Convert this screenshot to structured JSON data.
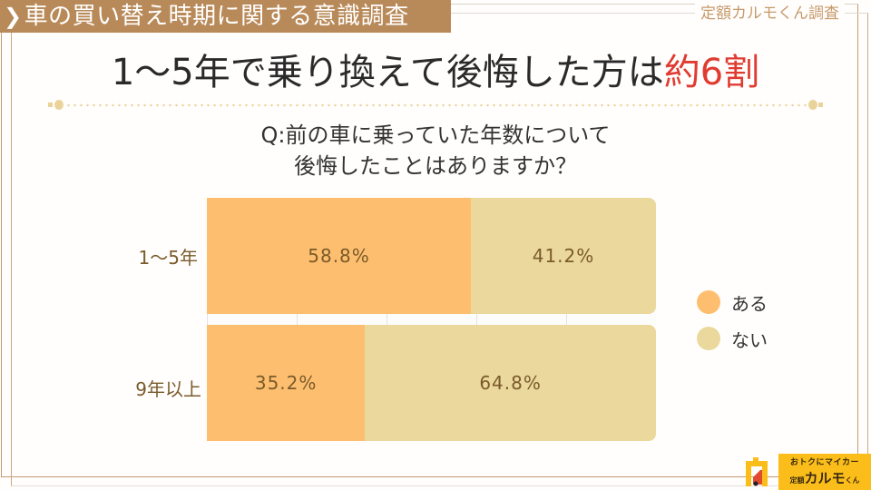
{
  "header": {
    "badge_chevron": "❯",
    "badge_title": "車の買い替え時期に関する意識調査",
    "corner_label": "定額カルモくん調査"
  },
  "headline": {
    "main": "1～5年で乗り換えて後悔した方は",
    "accent": "約6割"
  },
  "question": {
    "line1": "Q:前の車に乗っていた年数について",
    "line2": "後悔したことはありますか？"
  },
  "colors": {
    "yes": "#fdbf6f",
    "no": "#ead89c",
    "accent": "#e03b30",
    "brand_brown": "#b98a59",
    "logo_yellow": "#fbbd1a"
  },
  "chart_data": {
    "type": "bar",
    "orientation": "horizontal",
    "stacked": true,
    "normalized_percent": true,
    "title": "Q:前の車に乗っていた年数について後悔したことはありますか？",
    "categories": [
      "1～5年",
      "9年以上"
    ],
    "series": [
      {
        "name": "ある",
        "values": [
          58.8,
          35.2
        ],
        "labels": [
          "58.8%",
          "35.2%"
        ],
        "color": "#fdbf6f"
      },
      {
        "name": "ない",
        "values": [
          41.2,
          64.8
        ],
        "labels": [
          "41.2%",
          "64.8%"
        ],
        "color": "#ead89c"
      }
    ],
    "xlim": [
      0,
      100
    ],
    "grid": true,
    "legend_position": "right"
  },
  "legend": [
    {
      "label": "ある"
    },
    {
      "label": "ない"
    }
  ],
  "logo": {
    "tagline": "おトクにマイカー",
    "prefix": "定額",
    "name": "カルモ",
    "suffix": "くん"
  }
}
